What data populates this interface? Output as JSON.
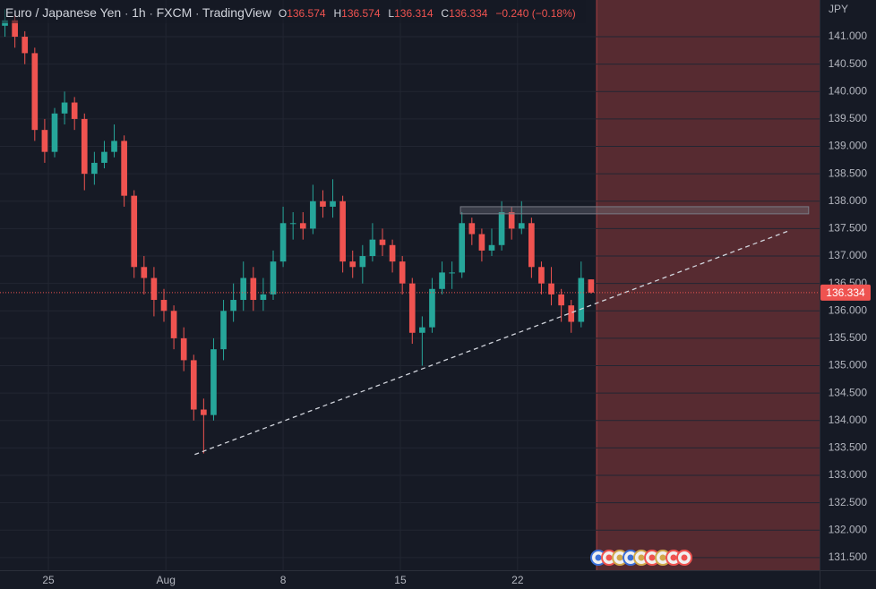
{
  "header": {
    "symbol": "Euro / Japanese Yen",
    "interval": "1h",
    "source": "FXCM",
    "platform": "TradingView",
    "o": "O",
    "h": "H",
    "l": "L",
    "c": "C",
    "change": "−0.240 (−0.18%)",
    "currency": "JPY"
  },
  "chart_data": {
    "type": "candlestick",
    "x": [
      0,
      1,
      2,
      3,
      4,
      5,
      6,
      7,
      8,
      9,
      10,
      11,
      12,
      13,
      14,
      15,
      16,
      17,
      18,
      19,
      20,
      21,
      22,
      23,
      24,
      25,
      26,
      27,
      28,
      29,
      30,
      31,
      32,
      33,
      34,
      35,
      36,
      37,
      38,
      39,
      40,
      41,
      42,
      43,
      44,
      45,
      46,
      47,
      48,
      49,
      50,
      51,
      52,
      53,
      54,
      55,
      56,
      57,
      58,
      59
    ],
    "open": [
      141.2,
      141.3,
      141.0,
      140.7,
      139.3,
      138.9,
      139.6,
      139.8,
      139.5,
      138.5,
      138.7,
      138.9,
      139.1,
      138.1,
      136.8,
      136.6,
      136.2,
      136.0,
      135.5,
      135.1,
      134.2,
      134.1,
      135.3,
      136.0,
      136.2,
      136.6,
      136.2,
      136.3,
      136.9,
      137.6,
      137.6,
      137.5,
      138.0,
      137.9,
      138.0,
      136.9,
      136.8,
      137.0,
      137.3,
      137.2,
      136.9,
      136.5,
      135.6,
      135.7,
      136.4,
      136.7,
      136.7,
      137.6,
      137.4,
      137.1,
      137.2,
      137.8,
      137.5,
      137.6,
      136.8,
      136.5,
      136.3,
      136.1,
      135.8,
      136.574
    ],
    "high": [
      141.5,
      141.4,
      141.1,
      140.8,
      139.5,
      139.7,
      140.0,
      139.9,
      139.6,
      138.9,
      139.1,
      139.4,
      139.2,
      138.2,
      137.0,
      136.8,
      136.4,
      136.1,
      135.7,
      135.2,
      134.4,
      135.5,
      136.2,
      136.5,
      136.9,
      136.8,
      136.6,
      137.1,
      137.9,
      137.8,
      137.8,
      138.3,
      138.2,
      138.4,
      138.1,
      137.1,
      137.2,
      137.6,
      137.5,
      137.3,
      137.0,
      136.6,
      135.9,
      136.6,
      136.9,
      136.9,
      137.8,
      137.7,
      137.5,
      137.5,
      138.0,
      137.9,
      138.0,
      137.7,
      136.9,
      136.8,
      136.4,
      136.2,
      136.9,
      136.574
    ],
    "low": [
      141.0,
      140.8,
      140.5,
      139.1,
      138.7,
      138.8,
      139.4,
      139.3,
      138.2,
      138.3,
      138.6,
      138.8,
      137.9,
      136.6,
      136.3,
      135.9,
      135.8,
      135.3,
      134.9,
      134.0,
      133.4,
      134.0,
      135.1,
      135.8,
      136.0,
      136.0,
      136.0,
      136.2,
      136.8,
      137.3,
      137.3,
      137.4,
      137.7,
      137.7,
      136.7,
      136.6,
      136.5,
      136.9,
      137.0,
      136.7,
      136.3,
      135.4,
      135.0,
      135.6,
      136.3,
      136.4,
      136.6,
      137.2,
      136.9,
      137.0,
      137.1,
      137.3,
      137.4,
      136.6,
      136.3,
      136.1,
      135.8,
      135.6,
      135.7,
      136.314
    ],
    "close": [
      141.3,
      141.0,
      140.7,
      139.3,
      138.9,
      139.6,
      139.8,
      139.5,
      138.5,
      138.7,
      138.9,
      139.1,
      138.1,
      136.8,
      136.6,
      136.2,
      136.0,
      135.5,
      135.1,
      134.2,
      134.1,
      135.3,
      136.0,
      136.2,
      136.6,
      136.2,
      136.3,
      136.9,
      137.6,
      137.6,
      137.5,
      138.0,
      137.9,
      138.0,
      136.9,
      136.8,
      137.0,
      137.3,
      137.2,
      136.9,
      136.5,
      135.6,
      135.7,
      136.4,
      136.7,
      136.7,
      137.6,
      137.4,
      137.1,
      137.2,
      137.8,
      137.5,
      137.6,
      136.8,
      136.5,
      136.3,
      136.1,
      135.8,
      136.6,
      136.334
    ],
    "up_color": "#26a69a",
    "down_color": "#ef5350",
    "xlim": [
      -0.5,
      82
    ],
    "xticks": [
      {
        "value": 4.37,
        "label": "25"
      },
      {
        "value": 16.2,
        "label": "Aug"
      },
      {
        "value": 28.0,
        "label": "8"
      },
      {
        "value": 39.8,
        "label": "15"
      },
      {
        "value": 51.6,
        "label": "22"
      }
    ],
    "ylim": [
      131.27,
      141.67
    ],
    "yticks": [
      {
        "value": 131.5,
        "label": "131.500"
      },
      {
        "value": 132,
        "label": "132.000"
      },
      {
        "value": 132.5,
        "label": "132.500"
      },
      {
        "value": 133,
        "label": "133.000"
      },
      {
        "value": 133.5,
        "label": "133.500"
      },
      {
        "value": 134,
        "label": "134.000"
      },
      {
        "value": 134.5,
        "label": "134.500"
      },
      {
        "value": 135,
        "label": "135.000"
      },
      {
        "value": 135.5,
        "label": "135.500"
      },
      {
        "value": 136,
        "label": "136.000"
      },
      {
        "value": 136.5,
        "label": "136.500"
      },
      {
        "value": 137,
        "label": "137.000"
      },
      {
        "value": 137.5,
        "label": "137.500"
      },
      {
        "value": 138,
        "label": "138.000"
      },
      {
        "value": 138.5,
        "label": "138.500"
      },
      {
        "value": 139,
        "label": "139.000"
      },
      {
        "value": 139.5,
        "label": "139.500"
      },
      {
        "value": 140,
        "label": "140.000"
      },
      {
        "value": 140.5,
        "label": "140.500"
      },
      {
        "value": 141,
        "label": "141.000"
      }
    ],
    "grid": true,
    "trendline": {
      "x": [
        19.1,
        78.9
      ],
      "y": [
        133.38,
        137.46
      ],
      "color": "#d1d4dc"
    },
    "rectangle": {
      "x": [
        45.85,
        80.9
      ],
      "y": [
        137.77,
        137.9
      ],
      "color": "#787b86"
    },
    "shade": {
      "x": [
        59.55,
        82
      ],
      "color": "#ef5350"
    }
  }
}
